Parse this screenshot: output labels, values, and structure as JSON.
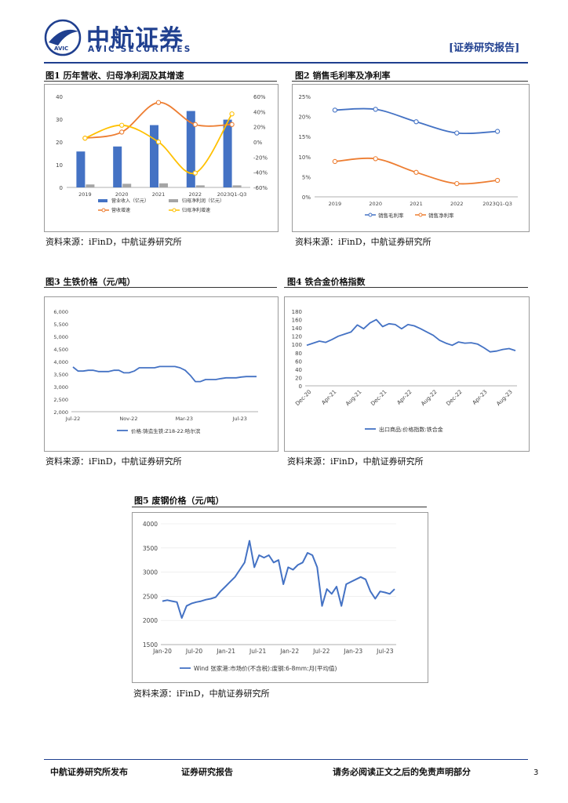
{
  "header": {
    "brand_cn": "中航证券",
    "brand_en": "AVIC SECURITIES",
    "logo_mark_text": "AVIC",
    "report_type": "[证券研究报告]",
    "colors": {
      "brand": "#1f3f8f",
      "bar_blue": "#4472c4",
      "bar_gray": "#a5a5a5",
      "orange": "#ed7d31",
      "gold": "#ffc000"
    }
  },
  "fig1": {
    "title": "图1 历年营收、归母净利润及其增速",
    "source": "资料来源：iFinD，中航证券研究所"
  },
  "fig2": {
    "title": "图2 销售毛利率及净利率",
    "source": "资料来源：iFinD，中航证券研究所"
  },
  "fig3": {
    "title": "图3 生铁价格（元/吨）",
    "source": "资料来源：iFinD，中航证券研究所"
  },
  "fig4": {
    "title": "图4 铁合金价格指数",
    "source": "资料来源：iFinD，中航证券研究所"
  },
  "fig5": {
    "title": "图5 废钢价格（元/吨）",
    "source": "资料来源：iFinD，中航证券研究所"
  },
  "footer": {
    "publisher": "中航证券研究所发布",
    "report": "证券研究报告",
    "disclaimer": "请务必阅读正文之后的免责声明部分",
    "page": "3"
  },
  "chart_data": [
    {
      "id": "fig1",
      "type": "bar",
      "categories": [
        "2019",
        "2020",
        "2021",
        "2022",
        "2023Q1-Q3"
      ],
      "series": [
        {
          "name": "营业收入（亿元）",
          "kind": "bar",
          "axis": "left",
          "values": [
            15.8,
            18.0,
            27.4,
            33.6,
            29.8
          ]
        },
        {
          "name": "归母净利润（亿元）",
          "kind": "bar",
          "axis": "left",
          "values": [
            1.3,
            1.6,
            1.8,
            0.9,
            0.9
          ]
        },
        {
          "name": "营收增速",
          "kind": "line",
          "axis": "right",
          "values": [
            5,
            13,
            52,
            23,
            23
          ]
        },
        {
          "name": "归母净利增速",
          "kind": "line",
          "axis": "right",
          "values": [
            5,
            22,
            0,
            -41,
            37
          ]
        }
      ],
      "ylim": [
        0,
        40
      ],
      "yticks": [
        "0",
        "10",
        "20",
        "30",
        "40"
      ],
      "y2lim": [
        -60,
        60
      ],
      "y2ticks": [
        "-60%",
        "-40%",
        "-20%",
        "0%",
        "20%",
        "40%",
        "60%"
      ],
      "legend": [
        "营业收入（亿元）",
        "归母净利润（亿元）",
        "营收增速",
        "归母净利增速"
      ]
    },
    {
      "id": "fig2",
      "type": "line",
      "categories": [
        "2019",
        "2020",
        "2021",
        "2022",
        "2023Q1-Q3"
      ],
      "series": [
        {
          "name": "销售毛利率",
          "values": [
            21.6,
            21.8,
            18.7,
            15.9,
            16.3
          ]
        },
        {
          "name": "销售净利率",
          "values": [
            8.8,
            9.5,
            6.1,
            3.3,
            4.1
          ]
        }
      ],
      "ylim": [
        0,
        25
      ],
      "yticks": [
        "0%",
        "5%",
        "10%",
        "15%",
        "20%",
        "25%"
      ],
      "legend": [
        "销售毛利率",
        "销售净利率"
      ]
    },
    {
      "id": "fig3",
      "type": "line",
      "x_labels": [
        "Jul-22",
        "Nov-22",
        "Mar-23",
        "Jul-23"
      ],
      "series": [
        {
          "name": "价格:铸造生铁:Z18-22:哈尔滨",
          "values": [
            3780,
            3620,
            3620,
            3650,
            3650,
            3600,
            3600,
            3600,
            3650,
            3650,
            3550,
            3550,
            3620,
            3750,
            3750,
            3750,
            3750,
            3800,
            3800,
            3800,
            3800,
            3750,
            3650,
            3450,
            3200,
            3200,
            3280,
            3280,
            3280,
            3320,
            3350,
            3350,
            3350,
            3380,
            3400,
            3400,
            3400
          ]
        }
      ],
      "ylim": [
        2000,
        6000
      ],
      "yticks": [
        "2,000",
        "2,500",
        "3,000",
        "3,500",
        "4,000",
        "4,500",
        "5,000",
        "5,500",
        "6,000"
      ],
      "legend": [
        "价格:铸造生铁:Z18-22:哈尔滨"
      ]
    },
    {
      "id": "fig4",
      "type": "line",
      "x_labels": [
        "Dec-20",
        "Apr-21",
        "Aug-21",
        "Dec-21",
        "Apr-22",
        "Aug-22",
        "Dec-22",
        "Apr-23",
        "Aug-23"
      ],
      "series": [
        {
          "name": "出口商品:价格指数:铁合金",
          "values": [
            98,
            103,
            108,
            105,
            112,
            120,
            125,
            130,
            147,
            138,
            152,
            160,
            143,
            150,
            148,
            138,
            148,
            145,
            138,
            130,
            122,
            110,
            103,
            98,
            106,
            103,
            104,
            101,
            92,
            82,
            84,
            88,
            90,
            85
          ]
        }
      ],
      "ylim": [
        0,
        180
      ],
      "yticks": [
        "0",
        "20",
        "40",
        "60",
        "80",
        "100",
        "120",
        "140",
        "160",
        "180"
      ],
      "legend": [
        "出口商品:价格指数:铁合金"
      ]
    },
    {
      "id": "fig5",
      "type": "line",
      "x_labels": [
        "Jan-20",
        "Jul-20",
        "Jan-21",
        "Jul-21",
        "Jan-22",
        "Jul-22",
        "Jan-23",
        "Jul-23"
      ],
      "series": [
        {
          "name": "Wind 张家港:市场价(不含税):废钢:6-8mm:月(平均值)",
          "values": [
            2400,
            2420,
            2400,
            2380,
            2050,
            2300,
            2350,
            2380,
            2400,
            2430,
            2450,
            2480,
            2600,
            2700,
            2800,
            2900,
            3050,
            3200,
            3650,
            3100,
            3350,
            3300,
            3350,
            3200,
            3250,
            2750,
            3100,
            3050,
            3150,
            3200,
            3400,
            3350,
            3100,
            2300,
            2650,
            2550,
            2700,
            2300,
            2750,
            2800,
            2850,
            2900,
            2850,
            2600,
            2450,
            2600,
            2580,
            2550,
            2650
          ]
        }
      ],
      "ylim": [
        1500,
        4000
      ],
      "yticks": [
        "1500",
        "2000",
        "2500",
        "3000",
        "3500",
        "4000"
      ],
      "legend": [
        "Wind 张家港:市场价(不含税):废钢:6-8mm:月(平均值)"
      ]
    }
  ]
}
